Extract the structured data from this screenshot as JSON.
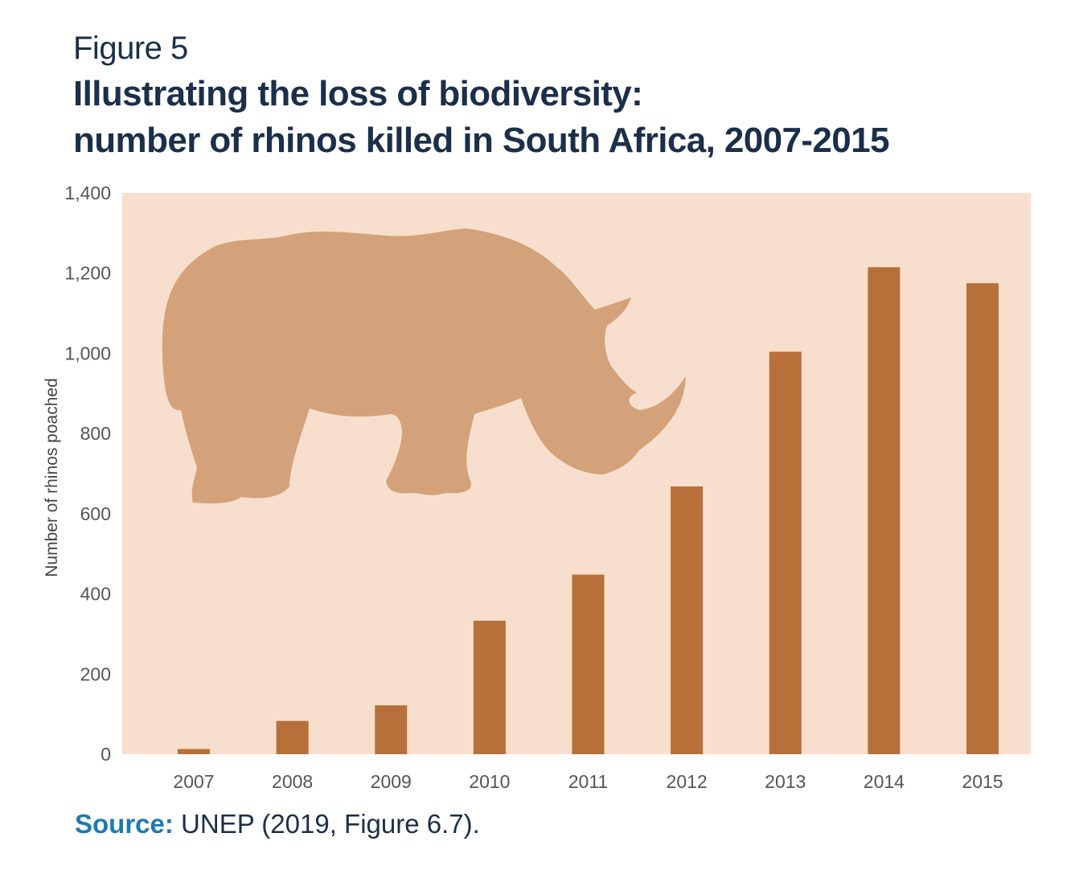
{
  "figure_label": "Figure 5",
  "title_line1": "Illustrating the loss of biodiversity:",
  "title_line2": "number of rhinos killed in South Africa, 2007-2015",
  "source_label": "Source:",
  "source_text": "UNEP (2019, Figure 6.7).",
  "colors": {
    "title": "#1b2f4a",
    "source_label": "#1f7ab0",
    "plot_background": "#f8dfcd",
    "bar": "#b8703a",
    "rhino_silhouette": "#d4a27a"
  },
  "decoration": {
    "silhouette_icon": "rhino-silhouette-icon"
  },
  "chart_data": {
    "type": "bar",
    "title": "",
    "xlabel": "",
    "ylabel": "Number of rhinos poached",
    "categories": [
      "2007",
      "2008",
      "2009",
      "2010",
      "2011",
      "2012",
      "2013",
      "2014",
      "2015"
    ],
    "values": [
      13,
      83,
      122,
      333,
      448,
      668,
      1004,
      1215,
      1175
    ],
    "ylim": [
      0,
      1400
    ],
    "yticks": [
      0,
      200,
      400,
      600,
      800,
      1000,
      1200,
      1400
    ],
    "ytick_labels": [
      "0",
      "200",
      "400",
      "600",
      "800",
      "1,000",
      "1,200",
      "1,400"
    ],
    "grid": false,
    "legend": "none"
  }
}
